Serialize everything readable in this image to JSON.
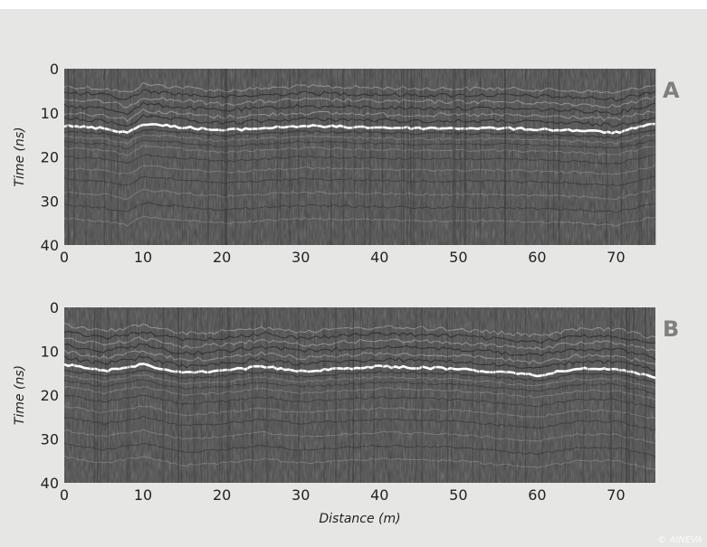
{
  "chart_data": [
    {
      "type": "heatmap",
      "panel_label": "A",
      "xlim": [
        0,
        75
      ],
      "ylim": [
        0,
        40
      ],
      "y_inverted": true,
      "x_ticks": [
        0,
        10,
        20,
        30,
        40,
        50,
        60,
        70
      ],
      "y_ticks": [
        0,
        10,
        20,
        30,
        40
      ],
      "xlabel": "",
      "ylabel": "Time (ns)",
      "reflector_depth_ns": [
        [
          0,
          13
        ],
        [
          5,
          13.5
        ],
        [
          8,
          14.5
        ],
        [
          10,
          12.5
        ],
        [
          20,
          14
        ],
        [
          30,
          13
        ],
        [
          45,
          13.5
        ],
        [
          55,
          13.5
        ],
        [
          65,
          14
        ],
        [
          70,
          14.5
        ],
        [
          75,
          12.5
        ]
      ],
      "colors": {
        "background": "#474747",
        "reflector": "#ffffff"
      }
    },
    {
      "type": "heatmap",
      "panel_label": "B",
      "xlim": [
        0,
        75
      ],
      "ylim": [
        0,
        40
      ],
      "y_inverted": true,
      "x_ticks": [
        0,
        10,
        20,
        30,
        40,
        50,
        60,
        70
      ],
      "y_ticks": [
        0,
        10,
        20,
        30,
        40
      ],
      "xlabel": "Distance (m)",
      "ylabel": "Time (ns)",
      "reflector_depth_ns": [
        [
          0,
          13
        ],
        [
          5,
          14.5
        ],
        [
          10,
          13
        ],
        [
          15,
          15
        ],
        [
          20,
          14.5
        ],
        [
          25,
          13.5
        ],
        [
          30,
          14.5
        ],
        [
          40,
          13.5
        ],
        [
          50,
          14
        ],
        [
          60,
          15.5
        ],
        [
          65,
          14
        ],
        [
          70,
          14
        ],
        [
          75,
          16
        ]
      ],
      "colors": {
        "background": "#474747",
        "reflector": "#ffffff"
      }
    }
  ],
  "credit": "© AINEVA"
}
